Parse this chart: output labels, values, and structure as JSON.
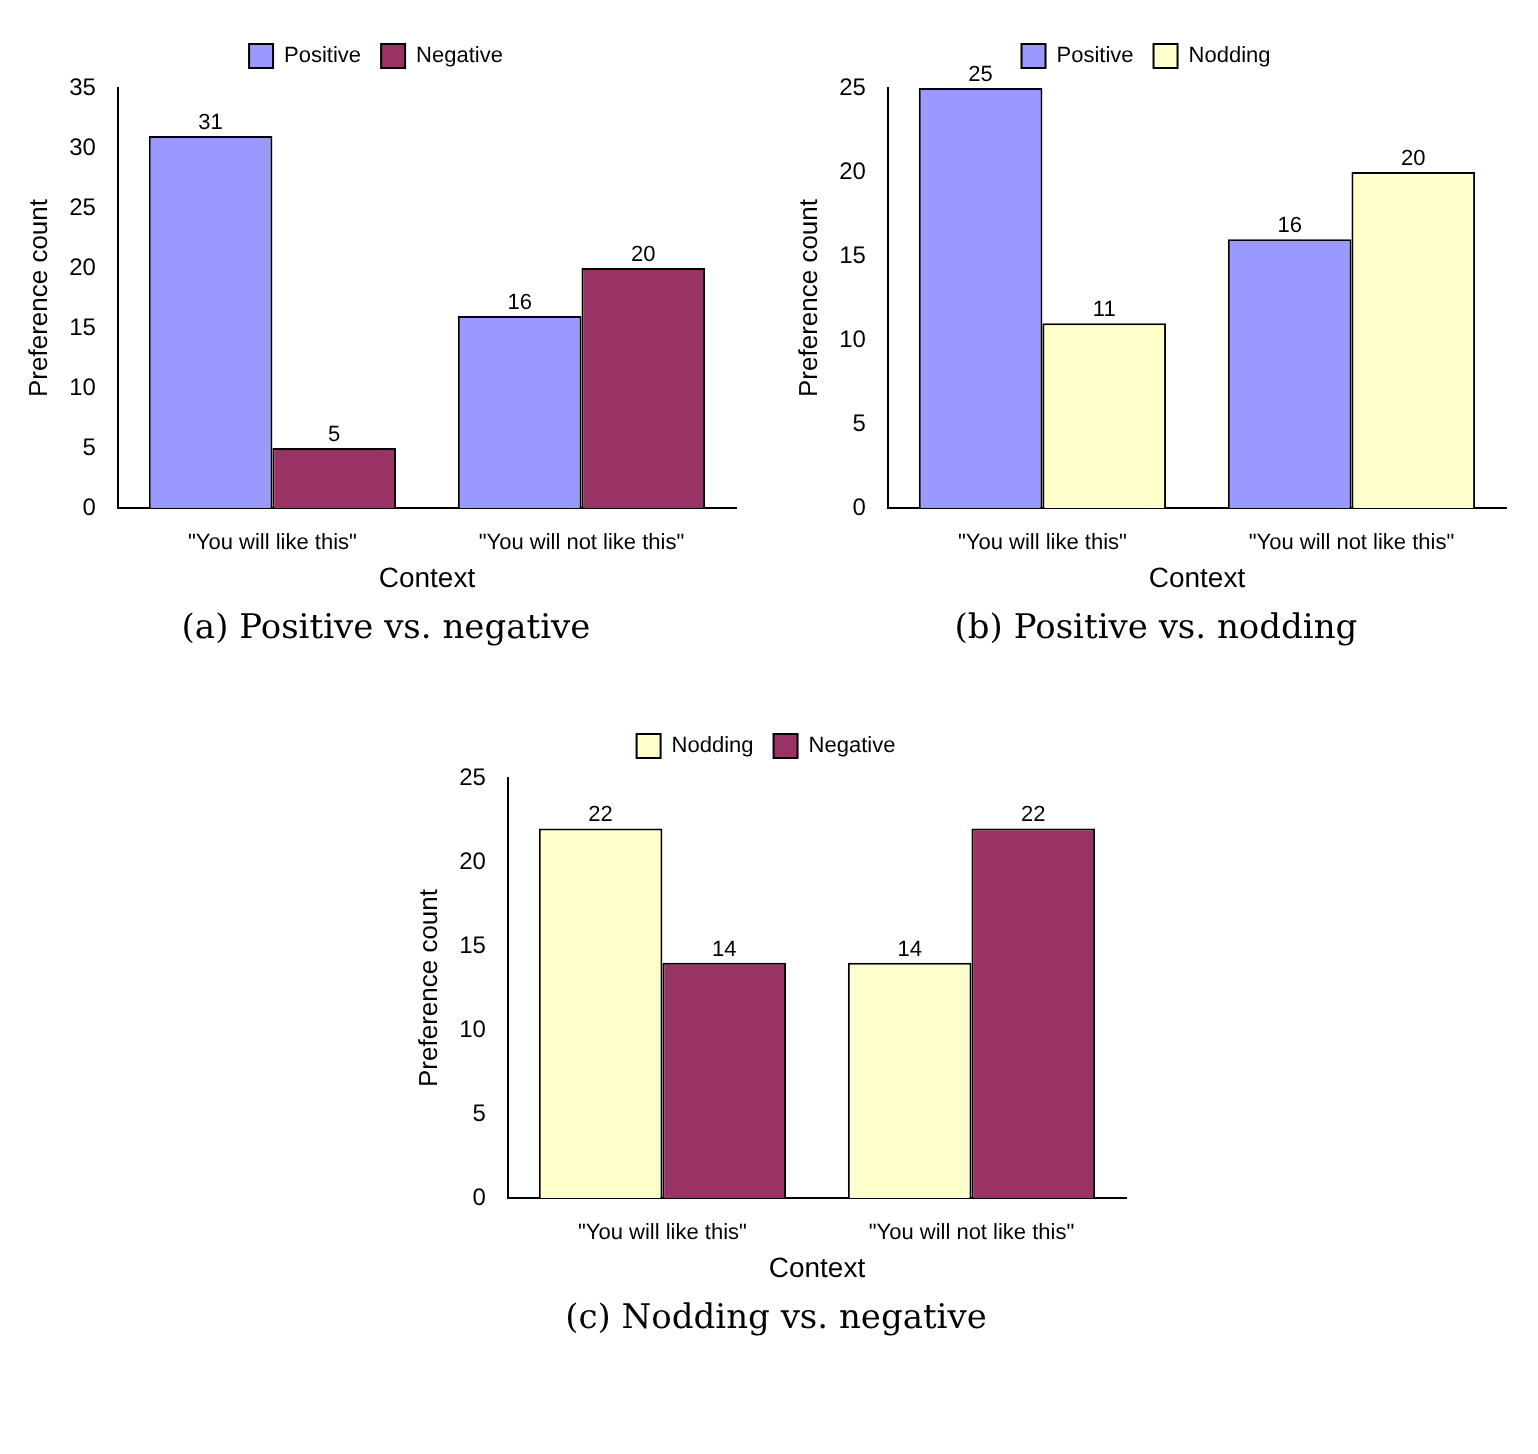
{
  "chart_data": [
    {
      "type": "bar",
      "categories": [
        "\"You will like this\"",
        "\"You will not like this\""
      ],
      "series": [
        {
          "name": "Positive",
          "color": "#9999ff",
          "values": [
            31,
            16
          ]
        },
        {
          "name": "Negative",
          "color": "#993366",
          "values": [
            5,
            20
          ]
        }
      ],
      "xlabel": "Context",
      "ylabel": "Preference count",
      "ylim": [
        0,
        35
      ],
      "yticks": [
        0,
        5,
        10,
        15,
        20,
        25,
        30,
        35
      ],
      "grid": false,
      "legend": "top",
      "data_labels": true,
      "annotations": [
        "(a) Positive vs. negative"
      ]
    },
    {
      "type": "bar",
      "categories": [
        "\"You will like this\"",
        "\"You will not like this\""
      ],
      "series": [
        {
          "name": "Positive",
          "color": "#9999ff",
          "values": [
            25,
            16
          ]
        },
        {
          "name": "Nodding",
          "color": "#ffffcc",
          "values": [
            11,
            20
          ]
        }
      ],
      "xlabel": "Context",
      "ylabel": "Preference count",
      "ylim": [
        0,
        25
      ],
      "yticks": [
        0,
        5,
        10,
        15,
        20,
        25
      ],
      "grid": false,
      "legend": "top",
      "data_labels": true,
      "annotations": [
        "(b) Positive vs. nodding"
      ]
    },
    {
      "type": "bar",
      "categories": [
        "\"You will like this\"",
        "\"You will not like this\""
      ],
      "series": [
        {
          "name": "Nodding",
          "color": "#ffffcc",
          "values": [
            22,
            14
          ]
        },
        {
          "name": "Negative",
          "color": "#993366",
          "values": [
            14,
            22
          ]
        }
      ],
      "xlabel": "Context",
      "ylabel": "Preference count",
      "ylim": [
        0,
        25
      ],
      "yticks": [
        0,
        5,
        10,
        15,
        20,
        25
      ],
      "grid": false,
      "legend": "top",
      "data_labels": true,
      "annotations": [
        "(c) Nodding vs. negative"
      ]
    }
  ]
}
